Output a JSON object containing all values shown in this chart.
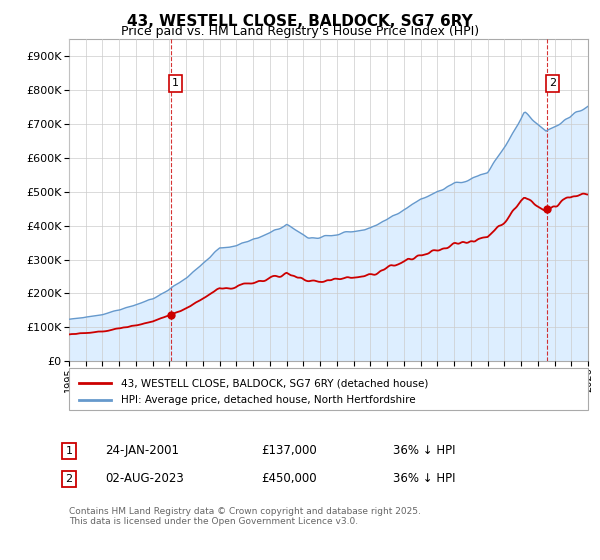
{
  "title": "43, WESTELL CLOSE, BALDOCK, SG7 6RY",
  "subtitle": "Price paid vs. HM Land Registry's House Price Index (HPI)",
  "legend_property": "43, WESTELL CLOSE, BALDOCK, SG7 6RY (detached house)",
  "legend_hpi": "HPI: Average price, detached house, North Hertfordshire",
  "annotation1_date": "24-JAN-2001",
  "annotation1_price": "£137,000",
  "annotation1_hpi": "36% ↓ HPI",
  "annotation2_date": "02-AUG-2023",
  "annotation2_price": "£450,000",
  "annotation2_hpi": "36% ↓ HPI",
  "footnote": "Contains HM Land Registry data © Crown copyright and database right 2025.\nThis data is licensed under the Open Government Licence v3.0.",
  "property_color": "#cc0000",
  "hpi_color": "#6699cc",
  "hpi_fill_color": "#ddeeff",
  "grid_color": "#cccccc",
  "background_color": "#ffffff",
  "ylim": [
    0,
    950000
  ],
  "xlim_start": 1995.0,
  "xlim_end": 2026.0,
  "sale1_year": 2001.07,
  "sale1_price": 137000,
  "sale2_year": 2023.58,
  "sale2_price": 450000
}
